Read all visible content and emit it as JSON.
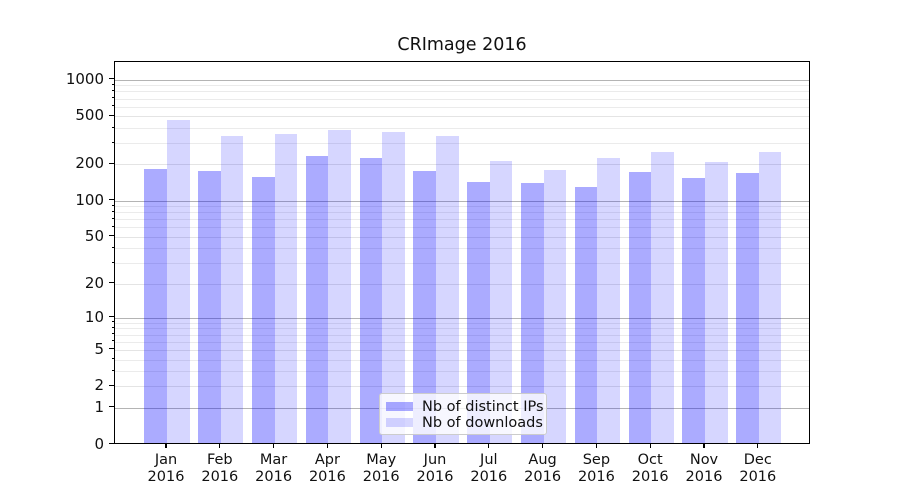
{
  "title": "CRImage 2016",
  "chart_data": {
    "type": "bar",
    "title": "CRImage 2016",
    "categories": [
      "Jan",
      "Feb",
      "Mar",
      "Apr",
      "May",
      "Jun",
      "Jul",
      "Aug",
      "Sep",
      "Oct",
      "Nov",
      "Dec"
    ],
    "category_year": "2016",
    "series": [
      {
        "name": "Nb of distinct IPs",
        "color": "rgba(0,0,255,0.33)",
        "values": [
          185,
          178,
          158,
          234,
          225,
          178,
          143,
          140,
          131,
          174,
          154,
          169
        ]
      },
      {
        "name": "Nb of downloads",
        "color": "rgba(0,0,255,0.16)",
        "values": [
          468,
          342,
          358,
          384,
          372,
          342,
          213,
          181,
          227,
          253,
          209,
          253
        ]
      }
    ],
    "yscale": "symlog",
    "yticks": [
      0,
      1,
      2,
      5,
      10,
      20,
      50,
      100,
      200,
      500,
      1000
    ],
    "minor_gridline_values": [
      3,
      4,
      6,
      7,
      8,
      9,
      30,
      40,
      60,
      70,
      80,
      90,
      300,
      400,
      600,
      700,
      800,
      900
    ],
    "decade_gridline_values": [
      1,
      10,
      100,
      1000
    ],
    "ylim": [
      0,
      1400
    ],
    "grid": true,
    "legend_position": "lower center",
    "xlabel": "",
    "ylabel": ""
  },
  "colors": {
    "bar_distinct_ips_flat": "#a9a9f5",
    "bar_downloads_flat": "#dcdcfa",
    "grid_decade": "#b4b4b4",
    "grid_minor": "#ebebeb",
    "axis": "#000000",
    "background": "#ffffff"
  }
}
